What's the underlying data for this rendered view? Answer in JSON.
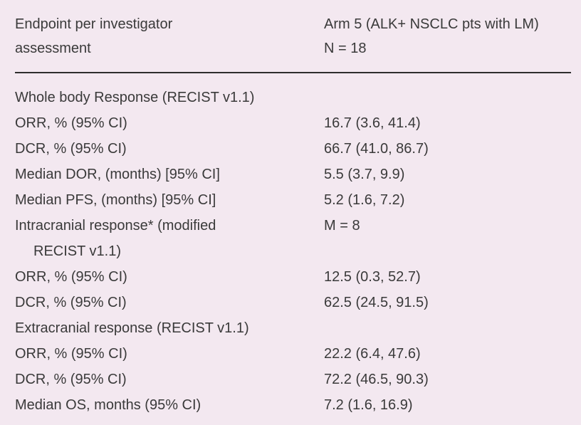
{
  "table": {
    "header": {
      "col1_line1": "Endpoint per investigator",
      "col1_line2": "assessment",
      "col2_line1": "Arm 5 (ALK+ NSCLC pts with LM)",
      "col2_line2": "N = 18"
    },
    "rows": [
      {
        "label": "Whole body Response (RECIST v1.1)",
        "value": ""
      },
      {
        "label": "ORR, % (95% CI)",
        "value": "16.7 (3.6, 41.4)"
      },
      {
        "label": "DCR, % (95% CI)",
        "value": "66.7 (41.0, 86.7)"
      },
      {
        "label": "Median DOR, (months) [95% CI]",
        "value": "5.5 (3.7, 9.9)"
      },
      {
        "label": "Median PFS, (months) [95% CI]",
        "value": "5.2 (1.6, 7.2)"
      },
      {
        "label": "Intracranial response* (modified",
        "label_cont": "RECIST v1.1)",
        "value": "M = 8"
      },
      {
        "label": "ORR, % (95% CI)",
        "value": "12.5 (0.3, 52.7)"
      },
      {
        "label": "DCR, % (95% CI)",
        "value": "62.5 (24.5, 91.5)"
      },
      {
        "label": "Extracranial response (RECIST v1.1)",
        "value": ""
      },
      {
        "label": "ORR, % (95% CI)",
        "value": "22.2 (6.4, 47.6)"
      },
      {
        "label": "DCR, % (95% CI)",
        "value": "72.2 (46.5, 90.3)"
      },
      {
        "label": "Median OS, months (95% CI)",
        "value": "7.2 (1.6, 16.9)"
      }
    ]
  }
}
